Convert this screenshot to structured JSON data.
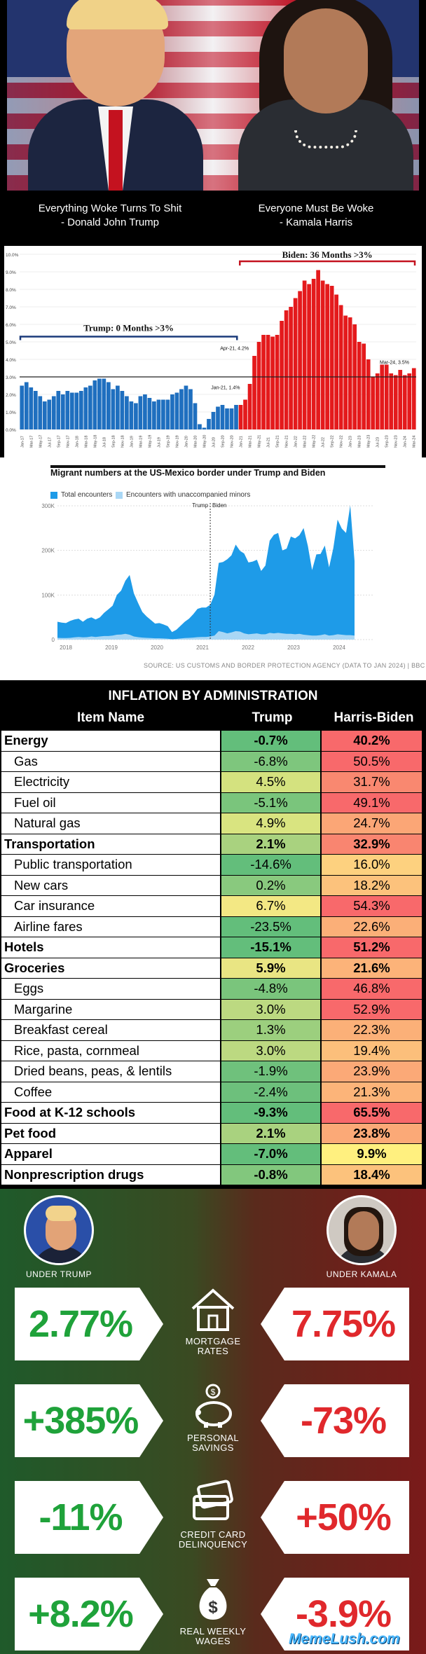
{
  "banner": {
    "quote_left_line1": "Everything Woke Turns To Shit",
    "quote_left_line2": "- Donald John Trump",
    "quote_right_line1": "Everyone Must Be Woke",
    "quote_right_line2": "- Kamala Harris"
  },
  "chart_data": [
    {
      "type": "bar",
      "title": "",
      "ylim": [
        0,
        10
      ],
      "yticks": [
        "0.0%",
        "1.0%",
        "2.0%",
        "3.0%",
        "4.0%",
        "5.0%",
        "6.0%",
        "7.0%",
        "8.0%",
        "9.0%",
        "10.0%"
      ],
      "threshold": 3.0,
      "trump_annotation": "Trump: 0 Months >3%",
      "biden_annotation": "Biden: 36 Months >3%",
      "labels": {
        "jan21": "Jan-21, 1.4%",
        "apr21": "Apr-21, 4.2%",
        "mar24": "Mar-24, 3.5%"
      },
      "xticks": [
        "Jan-17",
        "Mar-17",
        "May-17",
        "Jul-17",
        "Sep-17",
        "Nov-17",
        "Jan-18",
        "Mar-18",
        "May-18",
        "Jul-18",
        "Sep-18",
        "Nov-18",
        "Jan-19",
        "Mar-19",
        "May-19",
        "Jul-19",
        "Sep-19",
        "Nov-19",
        "Jan-20",
        "Mar-20",
        "May-20",
        "Jul-20",
        "Sep-20",
        "Nov-20",
        "Jan-21",
        "Mar-21",
        "May-21",
        "Jul-21",
        "Sep-21",
        "Nov-21",
        "Jan-22",
        "Mar-22",
        "May-22",
        "Jul-22",
        "Sep-22",
        "Nov-22",
        "Jan-23",
        "Mar-23",
        "May-23",
        "Jul-23",
        "Sep-23",
        "Nov-23",
        "Jan-24",
        "Mar-24"
      ],
      "series": [
        {
          "name": "Trump",
          "color": "#1f6fbf",
          "values": [
            2.5,
            2.7,
            2.4,
            2.2,
            1.9,
            1.6,
            1.7,
            1.9,
            2.2,
            2.0,
            2.2,
            2.1,
            2.1,
            2.2,
            2.4,
            2.5,
            2.8,
            2.9,
            2.9,
            2.7,
            2.3,
            2.5,
            2.2,
            1.9,
            1.6,
            1.5,
            1.9,
            2.0,
            1.8,
            1.6,
            1.7,
            1.7,
            1.7,
            2.0,
            2.1,
            2.3,
            2.5,
            2.3,
            1.5,
            0.3,
            0.1,
            0.6,
            1.0,
            1.3,
            1.4,
            1.2,
            1.2,
            1.4
          ]
        },
        {
          "name": "Biden",
          "color": "#e41a1c",
          "values": [
            1.4,
            1.7,
            2.6,
            4.2,
            5.0,
            5.4,
            5.4,
            5.3,
            5.4,
            6.2,
            6.8,
            7.0,
            7.5,
            7.9,
            8.5,
            8.3,
            8.6,
            9.1,
            8.5,
            8.3,
            8.2,
            7.7,
            7.1,
            6.5,
            6.4,
            6.0,
            5.0,
            4.9,
            4.0,
            3.0,
            3.2,
            3.7,
            3.7,
            3.2,
            3.1,
            3.4,
            3.1,
            3.2,
            3.5
          ]
        }
      ]
    },
    {
      "type": "area",
      "title": "Migrant numbers at the US-Mexico border under Trump and Biden",
      "legend": [
        "Total encounters",
        "Encounters with unaccompanied minors"
      ],
      "yticks": [
        "0",
        "100K",
        "200K",
        "300K"
      ],
      "ylim": [
        0,
        300000
      ],
      "xticks": [
        "2018",
        "2019",
        "2020",
        "2021",
        "2022",
        "2023",
        "2024"
      ],
      "divider_labels": [
        "Trump",
        "Biden"
      ],
      "source": "SOURCE: US CUSTOMS AND BORDER PROTECTION AGENCY (DATA TO JAN 2024) | BBC",
      "series": [
        {
          "name": "Total encounters",
          "color": "#1e9be8",
          "values": [
            40000,
            38000,
            37000,
            42000,
            45000,
            47000,
            40000,
            47000,
            50000,
            45000,
            50000,
            60000,
            68000,
            76000,
            100000,
            110000,
            132000,
            145000,
            104000,
            82000,
            62000,
            52000,
            44000,
            36000,
            37000,
            34000,
            30000,
            17000,
            22000,
            31000,
            40000,
            47000,
            57000,
            69000,
            72000,
            72000,
            78000,
            101000,
            172000,
            174000,
            180000,
            189000,
            213000,
            199000,
            193000,
            173000,
            175000,
            179000,
            154000,
            166000,
            222000,
            235000,
            239000,
            200000,
            204000,
            231000,
            227000,
            234000,
            250000,
            210000,
            156000,
            191000,
            192000,
            211000,
            162000,
            205000,
            269000,
            249000,
            239000,
            301000,
            176000
          ]
        },
        {
          "name": "Encounters with unaccompanied minors",
          "color": "#a9d7f5",
          "values": [
            4000,
            3500,
            3500,
            4000,
            5000,
            6000,
            5000,
            5500,
            7000,
            6000,
            7000,
            8000,
            8000,
            9000,
            11000,
            11500,
            13000,
            11000,
            7000,
            5500,
            4500,
            4000,
            3500,
            3000,
            3000,
            2500,
            2000,
            1000,
            1500,
            2500,
            3500,
            4000,
            4500,
            5500,
            6000,
            6000,
            7000,
            9000,
            19000,
            17000,
            14000,
            16000,
            19000,
            18000,
            14000,
            12000,
            13000,
            14000,
            12000,
            12000,
            15000,
            14000,
            15000,
            14000,
            13000,
            13000,
            12000,
            13000,
            11000,
            10000,
            9000,
            9000,
            10000,
            12000,
            9000,
            10000,
            12000,
            11000,
            10000,
            10000,
            9000
          ]
        }
      ]
    }
  ],
  "inflation_table": {
    "title": "INFLATION BY ADMINISTRATION",
    "headers": [
      "Item Name",
      "Trump",
      "Harris-Biden"
    ],
    "rows": [
      {
        "name": "Energy",
        "trump": "-0.7%",
        "biden": "40.2%",
        "bold": true,
        "tc": "#63be7b",
        "bc": "#f8696b"
      },
      {
        "name": "Gas",
        "trump": "-6.8%",
        "biden": "50.5%",
        "bold": false,
        "tc": "#7ec67d",
        "bc": "#f8696b"
      },
      {
        "name": "Electricity",
        "trump": "4.5%",
        "biden": "31.7%",
        "bold": false,
        "tc": "#d4e27f",
        "bc": "#f98870"
      },
      {
        "name": "Fuel oil",
        "trump": "-5.1%",
        "biden": "49.1%",
        "bold": false,
        "tc": "#7ac57c",
        "bc": "#f8696b"
      },
      {
        "name": "Natural gas",
        "trump": "4.9%",
        "biden": "24.7%",
        "bold": false,
        "tc": "#d9e480",
        "bc": "#fba676"
      },
      {
        "name": "Transportation",
        "trump": "2.1%",
        "biden": "32.9%",
        "bold": true,
        "tc": "#a9d27f",
        "bc": "#f98570"
      },
      {
        "name": "Public transportation",
        "trump": "-14.6%",
        "biden": "16.0%",
        "bold": false,
        "tc": "#63be7b",
        "bc": "#fdd17f"
      },
      {
        "name": "New cars",
        "trump": "0.2%",
        "biden": "18.2%",
        "bold": false,
        "tc": "#89c97e",
        "bc": "#fcc27c"
      },
      {
        "name": "Car insurance",
        "trump": "6.7%",
        "biden": "54.3%",
        "bold": false,
        "tc": "#f3e884",
        "bc": "#f8696b"
      },
      {
        "name": "Airline fares",
        "trump": "-23.5%",
        "biden": "22.6%",
        "bold": false,
        "tc": "#63be7b",
        "bc": "#fbaf78"
      },
      {
        "name": "Hotels",
        "trump": "-15.1%",
        "biden": "51.2%",
        "bold": true,
        "tc": "#63be7b",
        "bc": "#f8696b"
      },
      {
        "name": "Groceries",
        "trump": "5.9%",
        "biden": "21.6%",
        "bold": true,
        "tc": "#e9e583",
        "bc": "#fcb379"
      },
      {
        "name": "Eggs",
        "trump": "-4.8%",
        "biden": "46.8%",
        "bold": false,
        "tc": "#7ac57c",
        "bc": "#f8696b"
      },
      {
        "name": "Margarine",
        "trump": "3.0%",
        "biden": "52.9%",
        "bold": false,
        "tc": "#bcd981",
        "bc": "#f8696b"
      },
      {
        "name": "Breakfast cereal",
        "trump": "1.3%",
        "biden": "22.3%",
        "bold": false,
        "tc": "#9ccf7e",
        "bc": "#fbb078"
      },
      {
        "name": "Rice, pasta, cornmeal",
        "trump": "3.0%",
        "biden": "19.4%",
        "bold": false,
        "tc": "#bcd981",
        "bc": "#fcbf7b"
      },
      {
        "name": "Dried beans, peas, & lentils",
        "trump": "-1.9%",
        "biden": "23.9%",
        "bold": false,
        "tc": "#6fc17c",
        "bc": "#fba977"
      },
      {
        "name": "Coffee",
        "trump": "-2.4%",
        "biden": "21.3%",
        "bold": false,
        "tc": "#6dc07c",
        "bc": "#fcb479"
      },
      {
        "name": "Food at K-12 schools",
        "trump": "-9.3%",
        "biden": "65.5%",
        "bold": true,
        "tc": "#63be7b",
        "bc": "#f8696b"
      },
      {
        "name": "Pet food",
        "trump": "2.1%",
        "biden": "23.8%",
        "bold": true,
        "tc": "#a9d27f",
        "bc": "#fba977"
      },
      {
        "name": "Apparel",
        "trump": "-7.0%",
        "biden": "9.9%",
        "bold": true,
        "tc": "#63be7b",
        "bc": "#fff07f"
      },
      {
        "name": "Nonprescription drugs",
        "trump": "-0.8%",
        "biden": "18.4%",
        "bold": true,
        "tc": "#82c77d",
        "bc": "#fcc27c"
      }
    ]
  },
  "comparison": {
    "left_label": "UNDER TRUMP",
    "right_label": "UNDER KAMALA",
    "metrics": [
      {
        "trump": "2.77%",
        "kamala": "7.75%",
        "label_line1": "MORTGAGE",
        "label_line2": "RATES",
        "icon": "house-icon"
      },
      {
        "trump": "+385%",
        "kamala": "-73%",
        "label_line1": "PERSONAL",
        "label_line2": "SAVINGS",
        "icon": "piggy-bank-icon"
      },
      {
        "trump": "-11%",
        "kamala": "+50%",
        "label_line1": "CREDIT CARD",
        "label_line2": "DELINQUENCY",
        "icon": "credit-card-icon"
      },
      {
        "trump": "+8.2%",
        "kamala": "-3.9%",
        "label_line1": "REAL WEEKLY",
        "label_line2": "WAGES",
        "icon": "money-bag-icon"
      }
    ],
    "green": "#1fa23a",
    "red": "#e0282c"
  },
  "watermark": "MemeLush.com"
}
